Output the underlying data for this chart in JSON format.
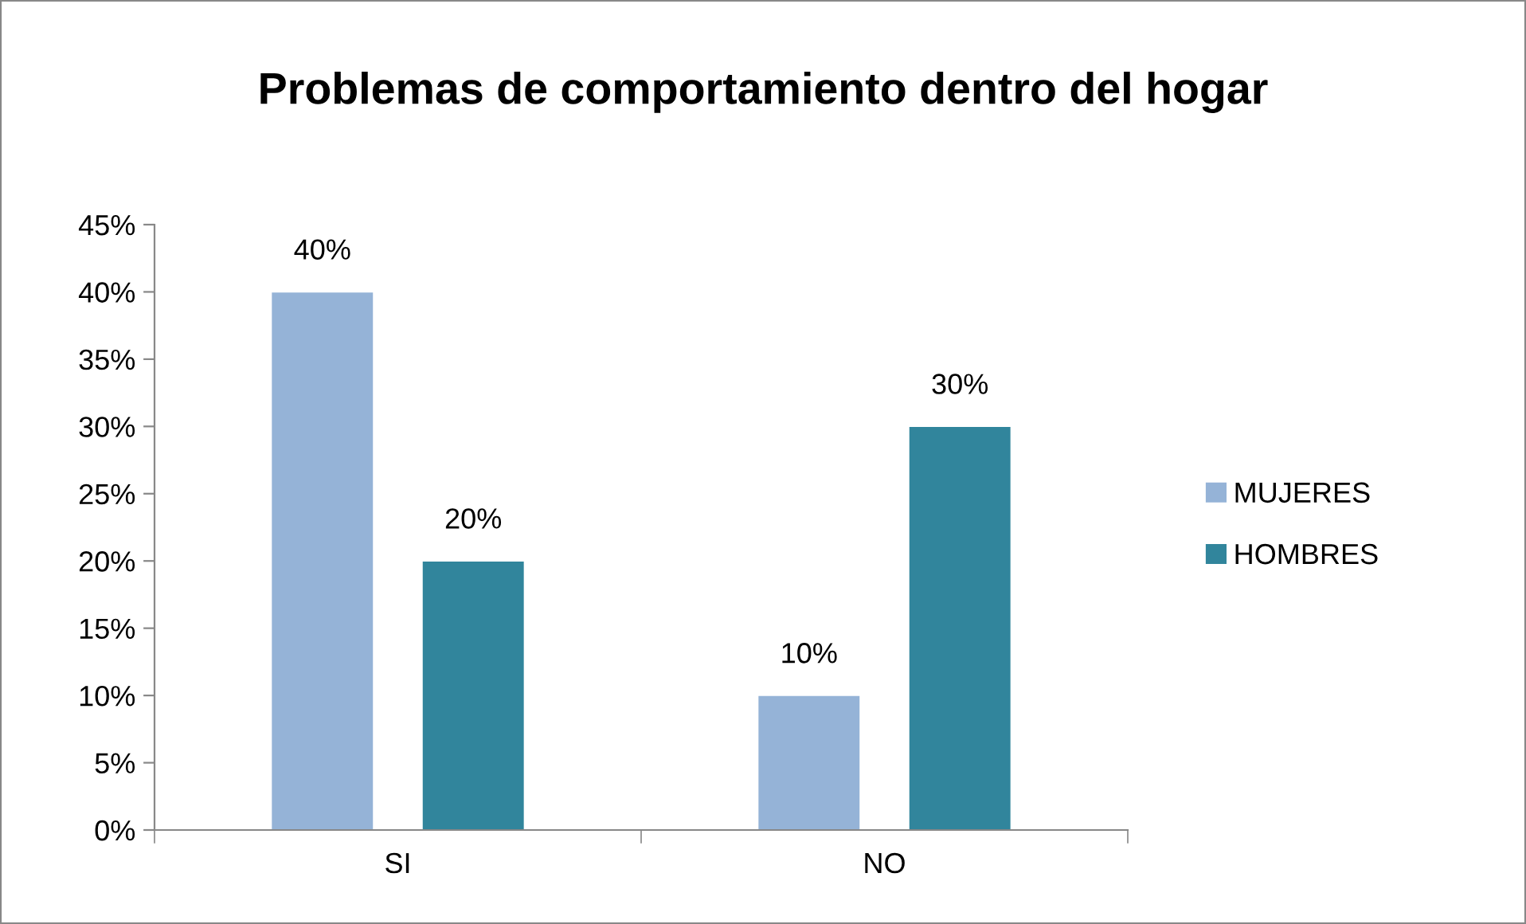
{
  "chart_data": {
    "type": "bar",
    "title": "Problemas de comportamiento dentro del hogar",
    "categories": [
      "SI",
      "NO"
    ],
    "series": [
      {
        "name": "MUJERES",
        "color": "#95b3d7",
        "values": [
          40,
          10
        ],
        "value_labels": [
          "40%",
          "10%"
        ]
      },
      {
        "name": "HOMBRES",
        "color": "#31859c",
        "values": [
          20,
          30
        ],
        "value_labels": [
          "20%",
          "30%"
        ]
      }
    ],
    "ylim": [
      0,
      45
    ],
    "yticks": [
      {
        "value": 0,
        "label": "0%"
      },
      {
        "value": 5,
        "label": "5%"
      },
      {
        "value": 10,
        "label": "10%"
      },
      {
        "value": 15,
        "label": "15%"
      },
      {
        "value": 20,
        "label": "20%"
      },
      {
        "value": 25,
        "label": "25%"
      },
      {
        "value": 30,
        "label": "30%"
      },
      {
        "value": 35,
        "label": "35%"
      },
      {
        "value": 40,
        "label": "40%"
      },
      {
        "value": 45,
        "label": "45%"
      }
    ],
    "grid": false,
    "legend": "right"
  }
}
